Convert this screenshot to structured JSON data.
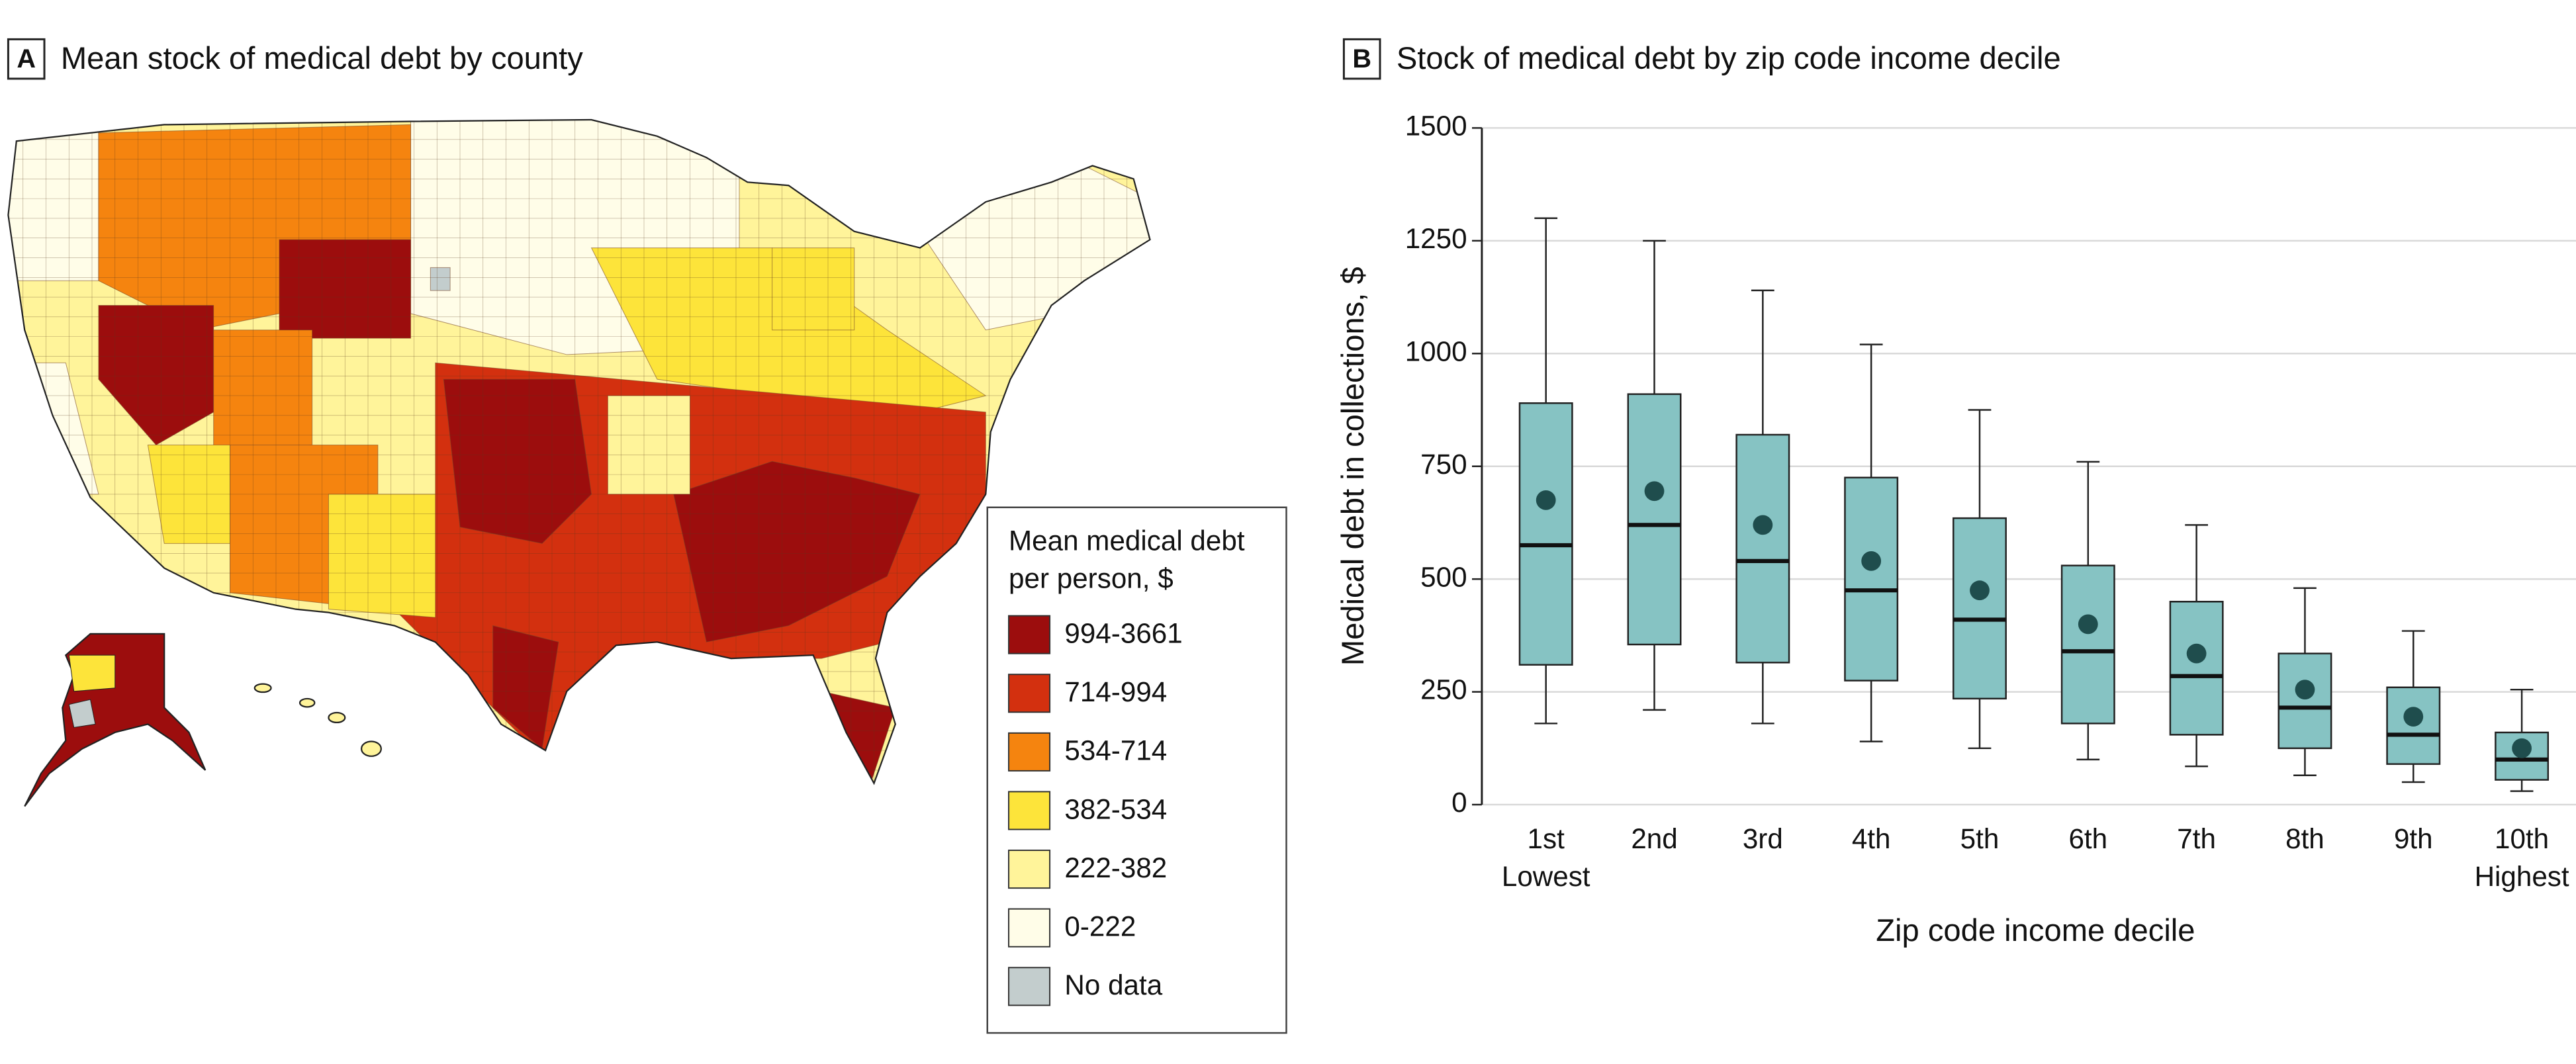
{
  "chart_data": [
    {
      "type": "map",
      "panel_label": "A",
      "title": "Mean stock of medical debt by county",
      "legend_title": "Mean medical debt per person, $",
      "legend": [
        {
          "label": "994-3661",
          "color": "#9c0d0d"
        },
        {
          "label": "714-994",
          "color": "#d3300f"
        },
        {
          "label": "534-714",
          "color": "#f5840f"
        },
        {
          "label": "382-534",
          "color": "#fde43a"
        },
        {
          "label": "222-382",
          "color": "#fff49a"
        },
        {
          "label": "0-222",
          "color": "#fffde8"
        },
        {
          "label": "No data",
          "color": "#c3cdcd"
        }
      ]
    },
    {
      "type": "box",
      "panel_label": "B",
      "title": "Stock of medical debt by zip code income decile",
      "x_label": "Zip code income decile",
      "y_label": "Medical debt in collections, $",
      "categories": [
        "1st",
        "2nd",
        "3rd",
        "4th",
        "5th",
        "6th",
        "7th",
        "8th",
        "9th",
        "10th"
      ],
      "category_notes": [
        "Lowest",
        null,
        null,
        null,
        null,
        null,
        null,
        null,
        null,
        "Highest"
      ],
      "whisker_low": [
        180,
        210,
        180,
        140,
        125,
        100,
        85,
        65,
        50,
        30
      ],
      "q1": [
        310,
        355,
        315,
        275,
        235,
        180,
        155,
        125,
        90,
        55
      ],
      "median": [
        575,
        620,
        540,
        475,
        410,
        340,
        285,
        215,
        155,
        100
      ],
      "q3": [
        890,
        910,
        820,
        725,
        635,
        530,
        450,
        335,
        260,
        160
      ],
      "whisker_high": [
        1300,
        1250,
        1140,
        1020,
        875,
        760,
        620,
        480,
        385,
        255
      ],
      "mean": [
        675,
        695,
        620,
        540,
        475,
        400,
        335,
        255,
        195,
        125
      ],
      "color": "#86c3c3",
      "mean_color": "#1f4d4d",
      "ylim": [
        0,
        1500
      ],
      "yticks": [
        0,
        250,
        500,
        750,
        1000,
        1250,
        1500
      ],
      "grid": true
    }
  ]
}
